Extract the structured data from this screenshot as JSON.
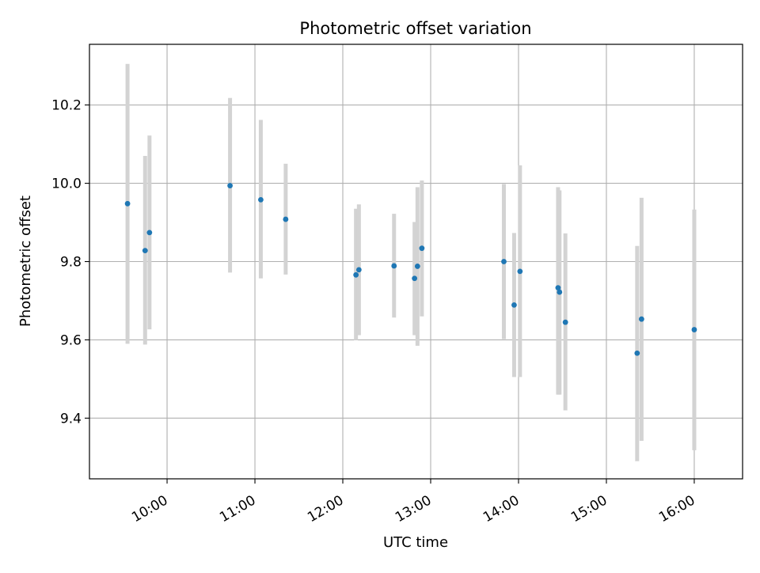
{
  "chart_data": {
    "type": "scatter",
    "title": "Photometric offset variation",
    "xlabel": "UTC time",
    "ylabel": "Photometric offset",
    "xlim": [
      "09:07",
      "16:33"
    ],
    "ylim": [
      9.245,
      10.355
    ],
    "x_ticks": [
      "10:00",
      "11:00",
      "12:00",
      "13:00",
      "14:00",
      "15:00",
      "16:00"
    ],
    "y_ticks": [
      "9.4",
      "9.6",
      "9.8",
      "10.0",
      "10.2"
    ],
    "grid": true,
    "marker_color": "#1f77b4",
    "errorbar_color": "#d3d3d3",
    "points": [
      {
        "time": "09:33",
        "value": 9.948,
        "low": 9.59,
        "high": 10.305
      },
      {
        "time": "09:45",
        "value": 9.828,
        "low": 9.588,
        "high": 10.07
      },
      {
        "time": "09:48",
        "value": 9.874,
        "low": 9.627,
        "high": 10.122
      },
      {
        "time": "10:43",
        "value": 9.994,
        "low": 9.772,
        "high": 10.218
      },
      {
        "time": "11:04",
        "value": 9.958,
        "low": 9.757,
        "high": 10.162
      },
      {
        "time": "11:21",
        "value": 9.908,
        "low": 9.767,
        "high": 10.05
      },
      {
        "time": "12:09",
        "value": 9.766,
        "low": 9.599,
        "high": 9.935
      },
      {
        "time": "12:11",
        "value": 9.779,
        "low": 9.612,
        "high": 9.946
      },
      {
        "time": "12:35",
        "value": 9.789,
        "low": 9.657,
        "high": 9.922
      },
      {
        "time": "12:49",
        "value": 9.757,
        "low": 9.612,
        "high": 9.901
      },
      {
        "time": "12:51",
        "value": 9.788,
        "low": 9.585,
        "high": 9.99
      },
      {
        "time": "12:54",
        "value": 9.834,
        "low": 9.66,
        "high": 10.007
      },
      {
        "time": "13:50",
        "value": 9.8,
        "low": 9.602,
        "high": 9.998
      },
      {
        "time": "13:57",
        "value": 9.689,
        "low": 9.505,
        "high": 9.873
      },
      {
        "time": "14:01",
        "value": 9.775,
        "low": 9.505,
        "high": 10.046
      },
      {
        "time": "14:27",
        "value": 9.733,
        "low": 9.46,
        "high": 9.99
      },
      {
        "time": "14:28",
        "value": 9.722,
        "low": 9.46,
        "high": 9.982
      },
      {
        "time": "14:32",
        "value": 9.645,
        "low": 9.42,
        "high": 9.872
      },
      {
        "time": "15:21",
        "value": 9.566,
        "low": 9.29,
        "high": 9.84
      },
      {
        "time": "15:24",
        "value": 9.653,
        "low": 9.342,
        "high": 9.963
      },
      {
        "time": "16:00",
        "value": 9.626,
        "low": 9.318,
        "high": 9.933
      }
    ]
  }
}
